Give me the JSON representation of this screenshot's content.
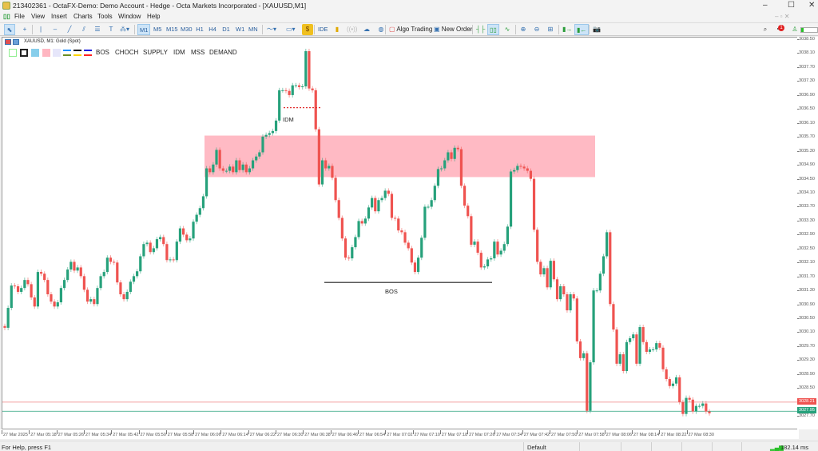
{
  "window": {
    "title": "213402361 - OctaFX-Demo: Demo Account - Hedge - Octa Markets Incorporated - [XAUUSD,M1]",
    "minimize": "–",
    "maximize": "☐",
    "close": "✕"
  },
  "menu": [
    "File",
    "View",
    "Insert",
    "Charts",
    "Tools",
    "Window",
    "Help"
  ],
  "toolbar": {
    "timeframes": [
      "M1",
      "M5",
      "M15",
      "M30",
      "H1",
      "H4",
      "D1",
      "W1",
      "MN"
    ],
    "active_timeframe": "M1",
    "ide": "IDE",
    "algo_trading": "Algo Trading",
    "new_order": "New Order",
    "notification_count": "1"
  },
  "chart": {
    "symbol_label": "XAUUSD, M1:  Gold (Spot)",
    "legend_buttons": [
      "BOS",
      "CHOCH",
      "SUPPLY",
      "IDM",
      "MSS",
      "DEMAND"
    ],
    "colors": {
      "bull": "#26a17b",
      "bear": "#ef5350",
      "zone": "#ffb6c1",
      "bid_line": "#ef8080",
      "ask_line": "#26a17b"
    },
    "annotations": {
      "idm": "IDM",
      "bos": "BOS"
    }
  },
  "chart_data": {
    "type": "candlestick",
    "timeframe": "M1",
    "ylim": [
      3027.6,
      3038.6
    ],
    "price_ticks": [
      "3038.50",
      "3038.10",
      "3037.70",
      "3037.30",
      "3036.90",
      "3036.50",
      "3036.10",
      "3035.70",
      "3035.30",
      "3034.90",
      "3034.50",
      "3034.10",
      "3033.70",
      "3033.30",
      "3032.90",
      "3032.50",
      "3032.10",
      "3031.70",
      "3031.30",
      "3030.90",
      "3030.50",
      "3030.10",
      "3029.70",
      "3029.30",
      "3028.90",
      "3028.50",
      "3027.70"
    ],
    "time_ticks": [
      "27 Mar 2025",
      "27 Mar 05:18",
      "27 Mar 05:26",
      "27 Mar 05:34",
      "27 Mar 05:42",
      "27 Mar 05:50",
      "27 Mar 05:58",
      "27 Mar 06:06",
      "27 Mar 06:14",
      "27 Mar 06:22",
      "27 Mar 06:30",
      "27 Mar 06:38",
      "27 Mar 06:46",
      "27 Mar 06:54",
      "27 Mar 07:02",
      "27 Mar 07:10",
      "27 Mar 07:18",
      "27 Mar 07:26",
      "27 Mar 07:34",
      "27 Mar 07:42",
      "27 Mar 07:50",
      "27 Mar 07:58",
      "27 Mar 08:06",
      "27 Mar 08:14",
      "27 Mar 08:22",
      "27 Mar 08:30"
    ],
    "closes": [
      3030.25,
      3030.82,
      3031.46,
      3031.44,
      3031.28,
      3031.39,
      3031.62,
      3031.5,
      3031.12,
      3030.86,
      3031.85,
      3031.8,
      3031.62,
      3031.21,
      3031.0,
      3030.86,
      3030.98,
      3031.39,
      3031.62,
      3031.92,
      3032.14,
      3031.89,
      3031.98,
      3031.73,
      3031.34,
      3031.0,
      3031.07,
      3030.93,
      3031.39,
      3031.73,
      3031.85,
      3032.26,
      3032.14,
      3032.12,
      3031.55,
      3031.21,
      3031.07,
      3031.28,
      3031.57,
      3031.73,
      3031.87,
      3032.3,
      3032.65,
      3032.69,
      3032.42,
      3032.53,
      3032.79,
      3032.85,
      3032.65,
      3032.19,
      3032.21,
      3032.19,
      3032.72,
      3033.1,
      3032.92,
      3032.76,
      3032.81,
      3033.29,
      3033.49,
      3033.68,
      3034.02,
      3034.82,
      3034.71,
      3034.93,
      3035.35,
      3034.82,
      3034.75,
      3034.75,
      3034.87,
      3034.71,
      3035.05,
      3034.77,
      3034.93,
      3034.71,
      3034.82,
      3035.05,
      3035.16,
      3035.28,
      3035.73,
      3035.78,
      3035.83,
      3035.89,
      3036.19,
      3037.06,
      3037.06,
      3037.04,
      3036.92,
      3037.2,
      3037.2,
      3037.15,
      3037.17,
      3038.18,
      3037.11,
      3037.06,
      3035.94,
      3034.36,
      3035.05,
      3034.82,
      3034.89,
      3034.55,
      3033.91,
      3033.4,
      3032.81,
      3032.26,
      3032.24,
      3032.56,
      3032.85,
      3033.31,
      3033.24,
      3033.38,
      3033.7,
      3033.97,
      3033.59,
      3033.91,
      3033.97,
      3034.18,
      3034.09,
      3033.4,
      3033.38,
      3033.04,
      3032.99,
      3032.69,
      3032.53,
      3032.12,
      3031.85,
      3032.26,
      3032.83,
      3033.72,
      3033.72,
      3033.91,
      3034.32,
      3034.8,
      3034.82,
      3035.05,
      3035.28,
      3035.09,
      3035.41,
      3035.37,
      3034.32,
      3033.75,
      3033.45,
      3032.63,
      3032.72,
      3032.4,
      3031.98,
      3032.01,
      3032.21,
      3032.24,
      3032.72,
      3032.35,
      3032.46,
      3032.65,
      3033.15,
      3034.73,
      3034.77,
      3034.89,
      3034.87,
      3034.82,
      3034.75,
      3034.52,
      3033.06,
      3032.14,
      3031.78,
      3031.96,
      3031.41,
      3032.17,
      3031.64,
      3031.07,
      3031.44,
      3031.21,
      3030.75,
      3031.21,
      3031.09,
      3029.86,
      3029.38,
      3029.52,
      3027.87,
      3029.26,
      3031.32,
      3031.32,
      3031.8,
      3032.3,
      3032.99,
      3030.93,
      3030.2,
      3029.22,
      3029.49,
      3029.01,
      3029.84,
      3029.95,
      3030.06,
      3029.22,
      3030.27,
      3029.84,
      3029.56,
      3029.63,
      3029.63,
      3029.81,
      3029.68,
      3029.06,
      3028.78,
      3028.58,
      3028.65,
      3028.83,
      3028.12,
      3027.78,
      3028.24,
      3028.19,
      3027.85,
      3028.01,
      3028.01,
      3028.08,
      3027.85,
      3027.8
    ],
    "supply_zone": {
      "top": 3035.76,
      "bottom": 3034.57
    },
    "idm_level": 3036.56,
    "bos_level": 3031.55,
    "bid": "3028.21",
    "ask": "3027.95"
  },
  "status": {
    "help": "For Help, press F1",
    "profile": "Default",
    "ping": "182.14 ms"
  }
}
